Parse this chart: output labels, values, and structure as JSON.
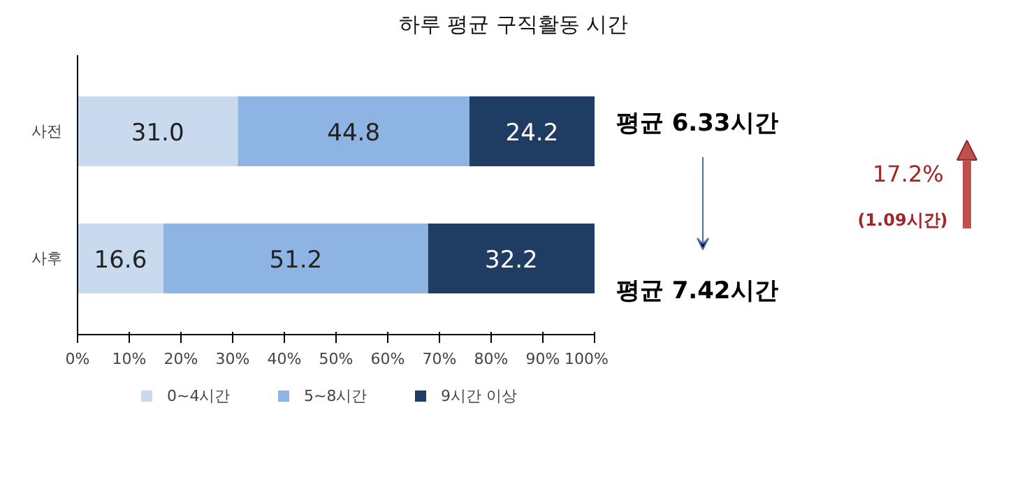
{
  "chart_data": {
    "type": "bar",
    "orientation": "horizontal",
    "stacked": true,
    "title": "하루 평균 구직활동 시간",
    "categories": [
      "사전",
      "사후"
    ],
    "series": [
      {
        "name": "0~4시간",
        "color": "#c9d9ee",
        "values": [
          31.0,
          16.6
        ],
        "value_labels": [
          "31.0",
          "16.6"
        ]
      },
      {
        "name": "5~8시간",
        "color": "#8eb4e3",
        "values": [
          44.8,
          51.2
        ],
        "value_labels": [
          "44.8",
          "51.2"
        ]
      },
      {
        "name": "9시간 이상",
        "color": "#1f3d63",
        "values": [
          24.2,
          32.2
        ],
        "value_labels": [
          "24.2",
          "32.2"
        ]
      }
    ],
    "xlim": [
      0,
      100
    ],
    "xticks": [
      {
        "value": 0,
        "label": "0%"
      },
      {
        "value": 10,
        "label": "10%"
      },
      {
        "value": 20,
        "label": "20%"
      },
      {
        "value": 30,
        "label": "30%"
      },
      {
        "value": 40,
        "label": "40%"
      },
      {
        "value": 50,
        "label": "50%"
      },
      {
        "value": 60,
        "label": "60%"
      },
      {
        "value": 70,
        "label": "70%"
      },
      {
        "value": 80,
        "label": "80%"
      },
      {
        "value": 90,
        "label": "90%"
      },
      {
        "value": 100,
        "label": "100%"
      }
    ],
    "annotations": [
      "평균 6.33시간",
      "평균 7.42시간",
      "17.2%",
      "(1.09시간)"
    ],
    "grid": false,
    "legend": "bottom"
  }
}
